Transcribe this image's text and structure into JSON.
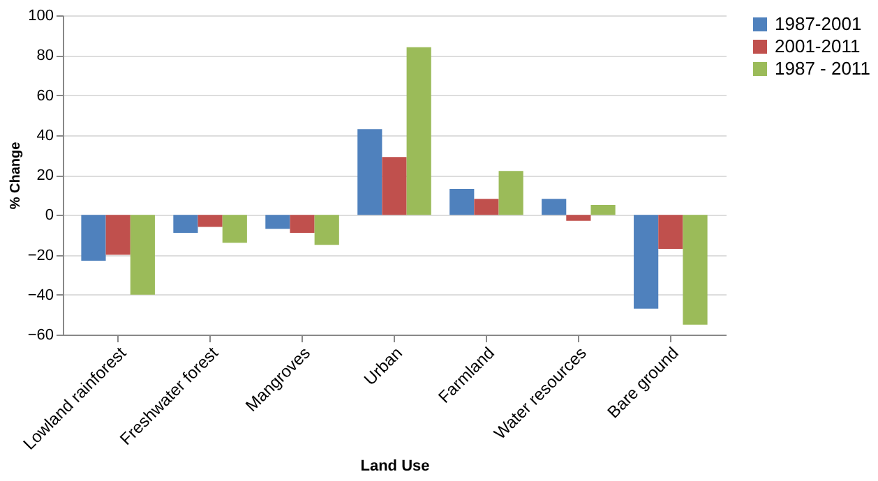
{
  "chart_data": {
    "type": "bar",
    "xlabel": "Land Use",
    "ylabel": "% Change",
    "categories": [
      "Lowland rainforest",
      "Freshwater forest",
      "Mangroves",
      "Urban",
      "Farmland",
      "Water resources",
      "Bare ground"
    ],
    "series": [
      {
        "name": "1987-2001",
        "color": "#4f81bd",
        "values": [
          -23,
          -9,
          -7,
          43,
          13,
          8,
          -47
        ]
      },
      {
        "name": "2001-2011",
        "color": "#c0504d",
        "values": [
          -20,
          -6,
          -9,
          29,
          8,
          -3,
          -17
        ]
      },
      {
        "name": "1987 - 2011",
        "color": "#9bbb59",
        "values": [
          -40,
          -14,
          -15,
          84,
          22,
          5,
          -55
        ]
      }
    ],
    "ylim": [
      -60,
      100
    ],
    "yticks": [
      -60,
      -40,
      -20,
      0,
      20,
      40,
      60,
      80,
      100
    ],
    "grid": "y",
    "legend": "right"
  }
}
